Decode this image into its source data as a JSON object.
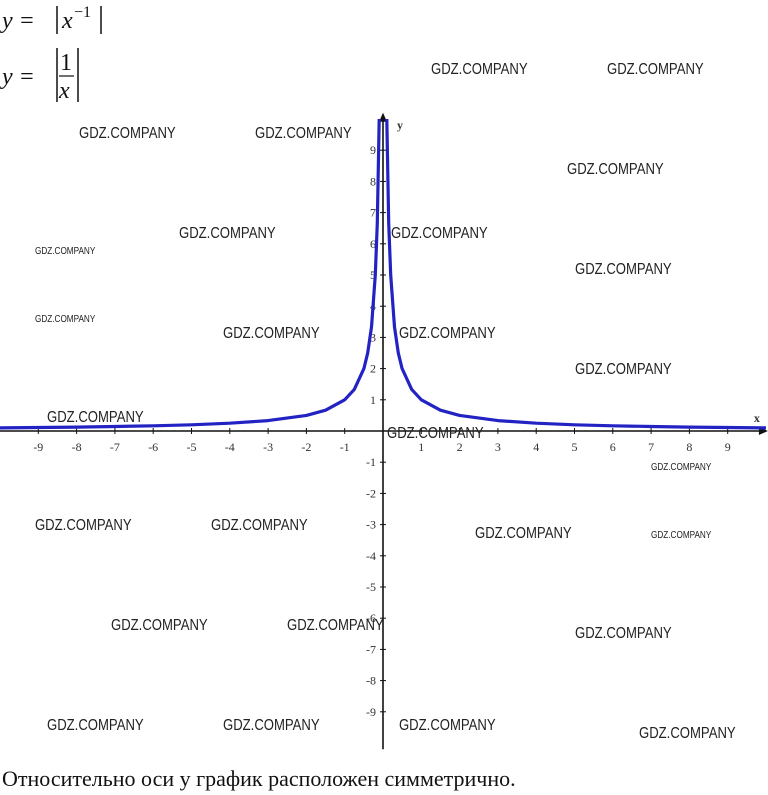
{
  "formula_1": {
    "lhs": "y =",
    "base": "x",
    "exp": "−1"
  },
  "formula_2": {
    "lhs": "y =",
    "num": "1",
    "den": "x"
  },
  "watermark": "GDZ.COMPANY",
  "chart_data": {
    "type": "line",
    "x_label": "x",
    "y_label": "y",
    "xlim": [
      -10,
      10.05
    ],
    "ylim": [
      -10.2,
      10.2
    ],
    "xticks": [
      -9,
      -8,
      -7,
      -6,
      -5,
      -4,
      -3,
      -2,
      -1,
      1,
      2,
      3,
      4,
      5,
      6,
      7,
      8,
      9
    ],
    "yticks": [
      -9,
      -8,
      -7,
      -6,
      -5,
      -4,
      -3,
      -2,
      -1,
      1,
      2,
      3,
      4,
      5,
      6,
      7,
      8,
      9
    ],
    "series": [
      {
        "color": "#2323c4",
        "x": [
          -10,
          -9,
          -8,
          -7,
          -6,
          -5,
          -4,
          -3,
          -2,
          -1.5,
          -1,
          -0.75,
          -0.5,
          -0.4,
          -0.3,
          -0.2,
          -0.15,
          -0.1,
          0,
          0.1,
          0.15,
          0.2,
          0.3,
          0.4,
          0.5,
          0.75,
          1,
          1.5,
          2,
          3,
          4,
          5,
          6,
          7,
          8,
          9,
          10
        ],
        "values": [
          0.1,
          0.111,
          0.125,
          0.143,
          0.167,
          0.2,
          0.25,
          0.333,
          0.5,
          0.667,
          1,
          1.333,
          2,
          2.5,
          3.333,
          5,
          6.667,
          10,
          null,
          10,
          6.667,
          5,
          3.333,
          2.5,
          2,
          1.333,
          1,
          0.667,
          0.5,
          0.333,
          0.25,
          0.2,
          0.167,
          0.143,
          0.125,
          0.111,
          0.1
        ]
      }
    ]
  },
  "caption": "Относительно оси y график расположен симметрично."
}
